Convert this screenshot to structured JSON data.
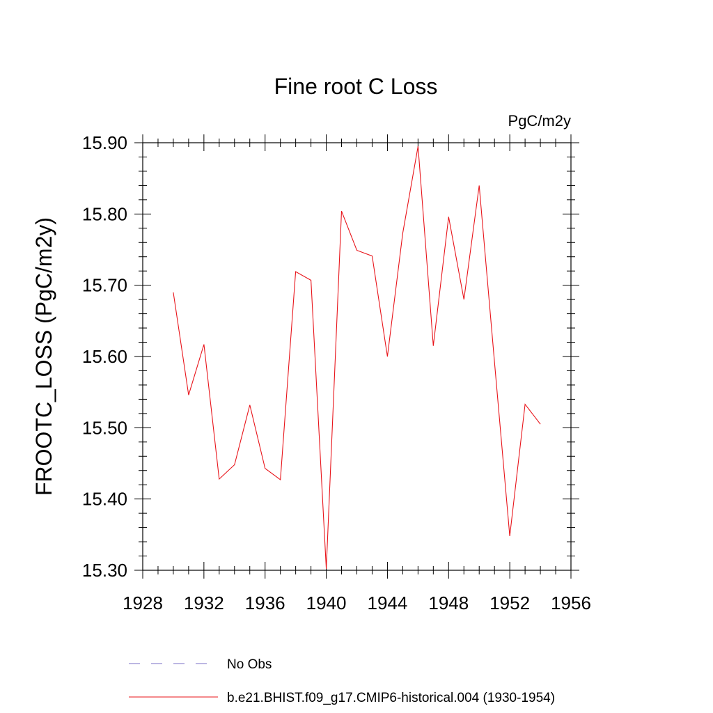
{
  "chart_data": {
    "type": "line",
    "title": "Fine root C Loss",
    "units": "PgC/m2y",
    "ylabel": "FROOTC_LOSS  (PgC/m2y)",
    "xlabel": "",
    "xlim": [
      1928,
      1956
    ],
    "ylim": [
      15.3,
      15.9
    ],
    "x_ticks": [
      1928,
      1932,
      1936,
      1940,
      1944,
      1948,
      1952,
      1956
    ],
    "y_ticks": [
      "15.30",
      "15.40",
      "15.50",
      "15.60",
      "15.70",
      "15.80",
      "15.90"
    ],
    "grid": false,
    "legend_position": "bottom",
    "series": [
      {
        "name": "b.e21.BHIST.f09_g17.CMIP6-historical.004 (1930-1954)",
        "color": "#e8141a",
        "style": "solid",
        "x": [
          1930,
          1931,
          1932,
          1933,
          1934,
          1935,
          1936,
          1937,
          1938,
          1939,
          1940,
          1941,
          1942,
          1943,
          1944,
          1945,
          1946,
          1947,
          1948,
          1949,
          1950,
          1951,
          1952,
          1953,
          1954
        ],
        "y": [
          15.69,
          15.546,
          15.617,
          15.428,
          15.448,
          15.532,
          15.443,
          15.427,
          15.719,
          15.707,
          15.302,
          15.804,
          15.749,
          15.741,
          15.6,
          15.773,
          15.895,
          15.615,
          15.796,
          15.68,
          15.84,
          15.592,
          15.348,
          15.533,
          15.505
        ]
      }
    ],
    "legend": [
      {
        "label": "No Obs",
        "color": "#7a6fc4",
        "style": "dashed"
      },
      {
        "label": "b.e21.BHIST.f09_g17.CMIP6-historical.004 (1930-1954)",
        "color": "#e8141a",
        "style": "solid"
      }
    ]
  }
}
